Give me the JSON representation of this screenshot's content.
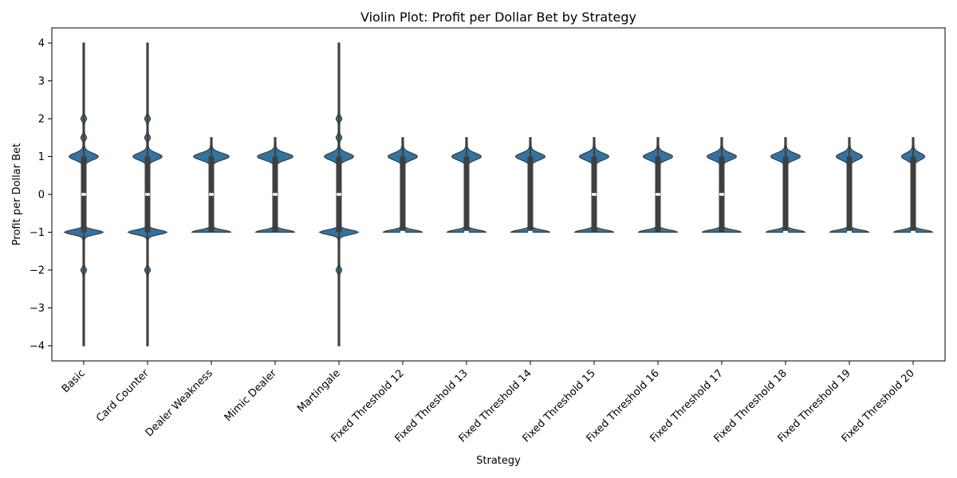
{
  "chart_data": {
    "type": "violin",
    "title": "Violin Plot: Profit per Dollar Bet by Strategy",
    "xlabel": "Strategy",
    "ylabel": "Profit per Dollar Bet",
    "ylim": [
      -4.4,
      4.4
    ],
    "yticks": [
      -4,
      -3,
      -2,
      -1,
      0,
      1,
      2,
      3,
      4
    ],
    "color": "#3274a1",
    "edge_color": "#3f3f3f",
    "categories": [
      "Basic",
      "Card Counter",
      "Dealer Weakness",
      "Mimic Dealer",
      "Martingale",
      "Fixed Threshold 12",
      "Fixed Threshold 13",
      "Fixed Threshold 14",
      "Fixed Threshold 15",
      "Fixed Threshold 16",
      "Fixed Threshold 17",
      "Fixed Threshold 18",
      "Fixed Threshold 19",
      "Fixed Threshold 20"
    ],
    "series": [
      {
        "name": "Basic",
        "min": -4,
        "max": 4,
        "q1": -1,
        "median": 0,
        "q3": 1,
        "upper_bump": 0.45,
        "lower_bump": 0.6,
        "extra_nodes": [
          2,
          1.5,
          -2
        ]
      },
      {
        "name": "Card Counter",
        "min": -4,
        "max": 4,
        "q1": -1,
        "median": 0,
        "q3": 1,
        "upper_bump": 0.45,
        "lower_bump": 0.6,
        "extra_nodes": [
          2,
          1.5,
          -2
        ]
      },
      {
        "name": "Dealer Weakness",
        "min": -1,
        "max": 1.5,
        "q1": -1,
        "median": 0,
        "q3": 1,
        "upper_bump": 0.55,
        "lower_bump": 0.6,
        "extra_nodes": []
      },
      {
        "name": "Mimic Dealer",
        "min": -1,
        "max": 1.5,
        "q1": -1,
        "median": 0,
        "q3": 1,
        "upper_bump": 0.55,
        "lower_bump": 0.6,
        "extra_nodes": []
      },
      {
        "name": "Martingale",
        "min": -4,
        "max": 4,
        "q1": -1,
        "median": 0,
        "q3": 1,
        "upper_bump": 0.45,
        "lower_bump": 0.6,
        "extra_nodes": [
          2,
          1.5,
          -2
        ]
      },
      {
        "name": "Fixed Threshold 12",
        "min": -1,
        "max": 1.5,
        "q1": -1,
        "median": -1,
        "q3": 1,
        "upper_bump": 0.45,
        "lower_bump": 0.6,
        "extra_nodes": []
      },
      {
        "name": "Fixed Threshold 13",
        "min": -1,
        "max": 1.5,
        "q1": -1,
        "median": -1,
        "q3": 1,
        "upper_bump": 0.45,
        "lower_bump": 0.6,
        "extra_nodes": []
      },
      {
        "name": "Fixed Threshold 14",
        "min": -1,
        "max": 1.5,
        "q1": -1,
        "median": -1,
        "q3": 1,
        "upper_bump": 0.45,
        "lower_bump": 0.6,
        "extra_nodes": []
      },
      {
        "name": "Fixed Threshold 15",
        "min": -1,
        "max": 1.5,
        "q1": -1,
        "median": 0,
        "q3": 1,
        "upper_bump": 0.45,
        "lower_bump": 0.6,
        "extra_nodes": []
      },
      {
        "name": "Fixed Threshold 16",
        "min": -1,
        "max": 1.5,
        "q1": -1,
        "median": 0,
        "q3": 1,
        "upper_bump": 0.45,
        "lower_bump": 0.6,
        "extra_nodes": []
      },
      {
        "name": "Fixed Threshold 17",
        "min": -1,
        "max": 1.5,
        "q1": -1,
        "median": 0,
        "q3": 1,
        "upper_bump": 0.45,
        "lower_bump": 0.6,
        "extra_nodes": []
      },
      {
        "name": "Fixed Threshold 18",
        "min": -1,
        "max": 1.5,
        "q1": -1,
        "median": -1,
        "q3": 1,
        "upper_bump": 0.45,
        "lower_bump": 0.6,
        "extra_nodes": []
      },
      {
        "name": "Fixed Threshold 19",
        "min": -1,
        "max": 1.5,
        "q1": -1,
        "median": -1,
        "q3": 1,
        "upper_bump": 0.4,
        "lower_bump": 0.6,
        "extra_nodes": []
      },
      {
        "name": "Fixed Threshold 20",
        "min": -1,
        "max": 1.5,
        "q1": -1,
        "median": -1,
        "q3": 1,
        "upper_bump": 0.35,
        "lower_bump": 0.6,
        "extra_nodes": []
      }
    ]
  }
}
